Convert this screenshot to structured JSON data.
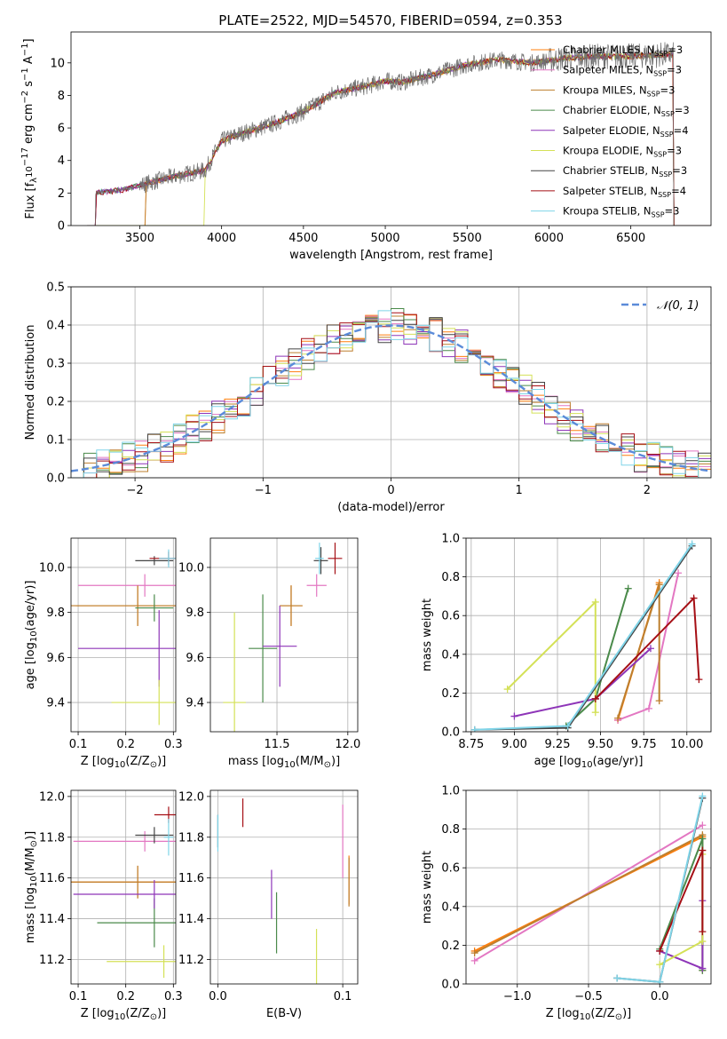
{
  "figure": {
    "title": "PLATE=2522, MJD=54570, FIBERID=0594, z=0.353"
  },
  "models": [
    {
      "label": "Chabrier MILES, N",
      "sub": "SSP",
      "tail": "=3",
      "color": "#ff7f0e"
    },
    {
      "label": "Salpeter MILES, N",
      "sub": "SSP",
      "tail": "=3",
      "color": "#e377c2"
    },
    {
      "label": "Kroupa MILES, N",
      "sub": "SSP",
      "tail": "=3",
      "color": "#bd7f2e"
    },
    {
      "label": "Chabrier ELODIE, N",
      "sub": "SSP",
      "tail": "=3",
      "color": "#4a8a4a"
    },
    {
      "label": "Salpeter ELODIE, N",
      "sub": "SSP",
      "tail": "=4",
      "color": "#8e35b8"
    },
    {
      "label": "Kroupa ELODIE, N",
      "sub": "SSP",
      "tail": "=3",
      "color": "#d4e157"
    },
    {
      "label": "Chabrier STELIB, N",
      "sub": "SSP",
      "tail": "=3",
      "color": "#444444"
    },
    {
      "label": "Salpeter STELIB, N",
      "sub": "SSP",
      "tail": "=4",
      "color": "#a50f15"
    },
    {
      "label": "Kroupa STELIB, N",
      "sub": "SSP",
      "tail": "=3",
      "color": "#7fd4e8"
    }
  ],
  "chart_data": [
    {
      "type": "line",
      "name": "spectrum",
      "xlabel": "wavelength [Angstrom, rest frame]",
      "ylabel_parts": [
        "Flux [f",
        "λ",
        "10",
        "−17",
        " erg cm",
        "−2",
        " s",
        "−1",
        " A",
        "−1",
        "]"
      ],
      "xlim": [
        3080,
        6990
      ],
      "ylim": [
        0,
        11.9
      ],
      "xticks": [
        3500,
        4000,
        4500,
        5000,
        5500,
        6000,
        6500
      ],
      "yticks": [
        0,
        2,
        4,
        6,
        8,
        10
      ],
      "series_key_points": {
        "x": [
          3220,
          3230,
          3400,
          3550,
          3700,
          3900,
          4000,
          4100,
          4300,
          4500,
          4700,
          4900,
          5000,
          5100,
          5300,
          5500,
          5700,
          5900,
          6100,
          6300,
          6500,
          6700,
          6760
        ],
        "y": [
          0,
          2.0,
          2.2,
          2.6,
          3.0,
          3.4,
          5.2,
          5.6,
          6.2,
          7.0,
          8.2,
          8.6,
          8.9,
          8.8,
          9.3,
          9.9,
          10.2,
          10.0,
          10.3,
          10.4,
          10.4,
          10.5,
          0
        ]
      }
    },
    {
      "type": "line",
      "name": "residual-histogram",
      "xlabel": "(data-model)/error",
      "ylabel": "Normed distribution",
      "xlim": [
        -2.5,
        2.5
      ],
      "ylim": [
        0,
        0.5
      ],
      "xticks": [
        -2,
        -1,
        0,
        1,
        2
      ],
      "yticks": [
        0,
        0.1,
        0.2,
        0.3,
        0.4,
        0.5
      ],
      "reference_curve": {
        "name": "𝒩(0, 1)",
        "mean": 0,
        "sigma": 1
      },
      "bin_width": 0.1
    },
    {
      "type": "scatter",
      "name": "age-vs-Z",
      "xlabel_parts": [
        "Z [log",
        "10",
        "(Z/Z",
        "⊙",
        ")]"
      ],
      "ylabel_parts": [
        "age  [log",
        "10",
        "(age/yr)]"
      ],
      "xlim": [
        0.085,
        0.305
      ],
      "ylim": [
        9.27,
        10.13
      ],
      "xticks": [
        0.1,
        0.2,
        0.3
      ],
      "yticks": [
        9.4,
        9.6,
        9.8,
        10.0
      ],
      "points": [
        {
          "model": 0,
          "x": 0.225,
          "y": 9.83,
          "xerr": 0.13,
          "yerr": 0.09
        },
        {
          "model": 1,
          "x": 0.24,
          "y": 9.92,
          "xerr": 0.14,
          "yerr": 0.05
        },
        {
          "model": 2,
          "x": 0.225,
          "y": 9.83,
          "xerr": 0.14,
          "yerr": 0.09
        },
        {
          "model": 3,
          "x": 0.26,
          "y": 9.82,
          "xerr": 0.04,
          "yerr": 0.06
        },
        {
          "model": 4,
          "x": 0.27,
          "y": 9.64,
          "xerr": 0.17,
          "yerr": 0.17
        },
        {
          "model": 5,
          "x": 0.27,
          "y": 9.4,
          "xerr": 0.1,
          "yerr": 0.1
        },
        {
          "model": 6,
          "x": 0.26,
          "y": 10.03,
          "xerr": 0.04,
          "yerr": 0.02
        },
        {
          "model": 7,
          "x": 0.29,
          "y": 10.04,
          "xerr": 0.04,
          "yerr": 0.03
        },
        {
          "model": 8,
          "x": 0.29,
          "y": 10.04,
          "xerr": 0.02,
          "yerr": 0.04
        }
      ]
    },
    {
      "type": "scatter",
      "name": "age-vs-mass",
      "xlabel_parts": [
        "mass [log",
        "10",
        "(M/M",
        "⊙",
        ")]"
      ],
      "xlim": [
        11.03,
        12.07
      ],
      "ylim": [
        9.27,
        10.13
      ],
      "xticks": [
        11.5,
        12.0
      ],
      "yticks": [
        9.4,
        9.6,
        9.8,
        10.0
      ],
      "points": [
        {
          "model": 0,
          "x": 11.6,
          "y": 9.83,
          "xerr": 0.08,
          "yerr": 0.09
        },
        {
          "model": 1,
          "x": 11.78,
          "y": 9.92,
          "xerr": 0.07,
          "yerr": 0.05
        },
        {
          "model": 2,
          "x": 11.6,
          "y": 9.83,
          "xerr": 0.08,
          "yerr": 0.09
        },
        {
          "model": 3,
          "x": 11.4,
          "y": 9.64,
          "xerr": 0.1,
          "yerr": 0.24
        },
        {
          "model": 4,
          "x": 11.52,
          "y": 9.65,
          "xerr": 0.12,
          "yerr": 0.18
        },
        {
          "model": 5,
          "x": 11.2,
          "y": 9.4,
          "xerr": 0.08,
          "yerr": 0.4
        },
        {
          "model": 6,
          "x": 11.81,
          "y": 10.03,
          "xerr": 0.05,
          "yerr": 0.06
        },
        {
          "model": 7,
          "x": 11.91,
          "y": 10.04,
          "xerr": 0.05,
          "yerr": 0.07
        },
        {
          "model": 8,
          "x": 11.8,
          "y": 10.04,
          "xerr": 0.03,
          "yerr": 0.07
        }
      ]
    },
    {
      "type": "line",
      "name": "mass-weight-vs-age",
      "xlabel_parts": [
        "age  [log",
        "10",
        "(age/yr)]"
      ],
      "ylabel": "mass weight",
      "xlim": [
        8.72,
        10.14
      ],
      "ylim": [
        0,
        1.0
      ],
      "xticks": [
        8.75,
        9.0,
        9.25,
        9.5,
        9.75,
        10.0
      ],
      "yticks": [
        0,
        0.2,
        0.4,
        0.6,
        0.8,
        1.0
      ],
      "series": [
        {
          "model": 0,
          "x": [
            9.6,
            9.84
          ],
          "y": [
            0.06,
            0.77
          ]
        },
        {
          "model": 1,
          "x": [
            9.6,
            9.78,
            9.95
          ],
          "y": [
            0.06,
            0.12,
            0.82
          ]
        },
        {
          "model": 2,
          "x": [
            9.6,
            9.84,
            9.84
          ],
          "y": [
            0.07,
            0.76,
            0.16
          ]
        },
        {
          "model": 3,
          "x": [
            9.3,
            9.47,
            9.66
          ],
          "y": [
            0.03,
            0.17,
            0.74
          ]
        },
        {
          "model": 4,
          "x": [
            9.0,
            9.47,
            9.79
          ],
          "y": [
            0.08,
            0.17,
            0.43
          ]
        },
        {
          "model": 5,
          "x": [
            8.96,
            9.47,
            9.47
          ],
          "y": [
            0.22,
            0.67,
            0.1
          ]
        },
        {
          "model": 6,
          "x": [
            8.77,
            9.31,
            10.03
          ],
          "y": [
            0.01,
            0.02,
            0.96
          ]
        },
        {
          "model": 7,
          "x": [
            9.47,
            10.04,
            10.07
          ],
          "y": [
            0.17,
            0.69,
            0.27
          ]
        },
        {
          "model": 8,
          "x": [
            8.77,
            9.31,
            10.03
          ],
          "y": [
            0.01,
            0.03,
            0.97
          ]
        }
      ]
    },
    {
      "type": "scatter",
      "name": "mass-vs-Z",
      "xlabel_parts": [
        "Z [log",
        "10",
        "(Z/Z",
        "⊙",
        ")]"
      ],
      "ylabel_parts": [
        "mass [log",
        "10",
        "(M/M",
        "⊙",
        ")]"
      ],
      "xlim": [
        0.085,
        0.305
      ],
      "ylim": [
        11.08,
        12.03
      ],
      "xticks": [
        0.1,
        0.2,
        0.3
      ],
      "yticks": [
        11.2,
        11.4,
        11.6,
        11.8,
        12.0
      ],
      "points": [
        {
          "model": 0,
          "x": 0.225,
          "y": 11.58,
          "xerr": 0.14,
          "yerr": 0.08
        },
        {
          "model": 1,
          "x": 0.24,
          "y": 11.78,
          "xerr": 0.15,
          "yerr": 0.05
        },
        {
          "model": 2,
          "x": 0.225,
          "y": 11.58,
          "xerr": 0.14,
          "yerr": 0.08
        },
        {
          "model": 3,
          "x": 0.26,
          "y": 11.38,
          "xerr": 0.12,
          "yerr": 0.12
        },
        {
          "model": 4,
          "x": 0.26,
          "y": 11.52,
          "xerr": 0.17,
          "yerr": 0.07
        },
        {
          "model": 5,
          "x": 0.28,
          "y": 11.19,
          "xerr": 0.12,
          "yerr": 0.08
        },
        {
          "model": 6,
          "x": 0.26,
          "y": 11.81,
          "xerr": 0.04,
          "yerr": 0.04
        },
        {
          "model": 7,
          "x": 0.29,
          "y": 11.91,
          "xerr": 0.03,
          "yerr": 0.04
        },
        {
          "model": 8,
          "x": 0.29,
          "y": 11.8,
          "xerr": 0.01,
          "yerr": 0.09
        }
      ]
    },
    {
      "type": "scatter",
      "name": "mass-vs-ebv",
      "xlabel": "E(B-V)",
      "xlim": [
        -0.006,
        0.112
      ],
      "ylim": [
        11.08,
        12.03
      ],
      "xticks": [
        0.0,
        0.1
      ],
      "yticks": [
        11.2,
        11.4,
        11.6,
        11.8,
        12.0
      ],
      "points": [
        {
          "model": 0,
          "x": 0.105,
          "y": 11.59,
          "xerr": 0,
          "yerr": 0.12
        },
        {
          "model": 1,
          "x": 0.1,
          "y": 11.78,
          "xerr": 0,
          "yerr": 0.18
        },
        {
          "model": 2,
          "x": 0.105,
          "y": 11.58,
          "xerr": 0,
          "yerr": 0.12
        },
        {
          "model": 3,
          "x": 0.047,
          "y": 11.38,
          "xerr": 0,
          "yerr": 0.15
        },
        {
          "model": 4,
          "x": 0.043,
          "y": 11.52,
          "xerr": 0,
          "yerr": 0.12
        },
        {
          "model": 5,
          "x": 0.079,
          "y": 11.19,
          "xerr": 0,
          "yerr": 0.16
        },
        {
          "model": 6,
          "x": 0.0,
          "y": 11.83,
          "xerr": 0,
          "yerr": 0.08
        },
        {
          "model": 7,
          "x": 0.02,
          "y": 11.92,
          "xerr": 0,
          "yerr": 0.07
        },
        {
          "model": 8,
          "x": 0.0,
          "y": 11.82,
          "xerr": 0,
          "yerr": 0.09
        }
      ]
    },
    {
      "type": "line",
      "name": "mass-weight-vs-Z",
      "xlabel_parts": [
        "Z [log",
        "10",
        "(Z/Z",
        "⊙",
        ")]"
      ],
      "ylabel": "mass weight",
      "xlim": [
        -1.36,
        0.36
      ],
      "ylim": [
        0,
        1.0
      ],
      "xticks": [
        -1.0,
        -0.5,
        0.0
      ],
      "yticks": [
        0,
        0.2,
        0.4,
        0.6,
        0.8,
        1.0
      ],
      "series": [
        {
          "model": 0,
          "x": [
            -1.3,
            0.3
          ],
          "y": [
            0.17,
            0.76
          ]
        },
        {
          "model": 1,
          "x": [
            -1.3,
            0.3
          ],
          "y": [
            0.12,
            0.82
          ]
        },
        {
          "model": 2,
          "x": [
            -1.3,
            0.3,
            0.3
          ],
          "y": [
            0.16,
            0.77,
            0.07
          ]
        },
        {
          "model": 3,
          "x": [
            0.0,
            0.3,
            0.3
          ],
          "y": [
            0.18,
            0.75,
            0.07
          ]
        },
        {
          "model": 4,
          "x": [
            0.0,
            0.3,
            0.3
          ],
          "y": [
            0.17,
            0.08,
            0.43
          ]
        },
        {
          "model": 5,
          "x": [
            0.0,
            0.3,
            0.3
          ],
          "y": [
            0.1,
            0.22,
            0.67
          ]
        },
        {
          "model": 6,
          "x": [
            -0.3,
            0.0,
            0.3
          ],
          "y": [
            0.03,
            0.01,
            0.96
          ]
        },
        {
          "model": 7,
          "x": [
            0.0,
            0.3,
            0.3
          ],
          "y": [
            0.17,
            0.69,
            0.27
          ]
        },
        {
          "model": 8,
          "x": [
            -0.3,
            0.0,
            0.3
          ],
          "y": [
            0.03,
            0.01,
            0.97
          ]
        }
      ]
    }
  ]
}
